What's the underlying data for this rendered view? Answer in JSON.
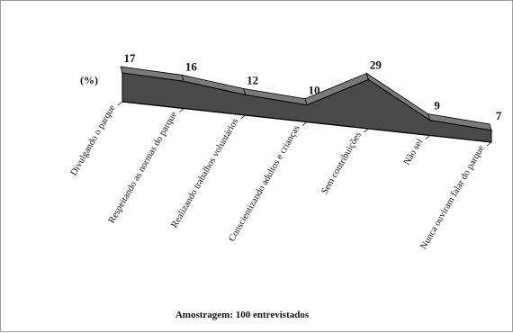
{
  "chart_data": {
    "type": "area",
    "style": "3d-ribbon",
    "unit_label": "(%)",
    "categories": [
      "Divulgando o parque",
      "Respeitando as normas do parque",
      "Realizando trabalhos voluntários",
      "Conscientizando adultos e crianças",
      "Sem contribuições",
      "Não sei",
      "Nunca ouviram falar do parque"
    ],
    "values": [
      17,
      16,
      12,
      10,
      29,
      9,
      7
    ],
    "value_labels": [
      "17",
      "16",
      "12",
      "10",
      "29",
      "9",
      "7"
    ],
    "ylim": [
      0,
      30
    ],
    "grid": false,
    "legend": "none",
    "colors": {
      "fill": "#4a4a4a",
      "top": "#7a7a7a",
      "edge": "#000000"
    }
  },
  "footer": {
    "note": "Amostragem: 100 entrevistados"
  }
}
